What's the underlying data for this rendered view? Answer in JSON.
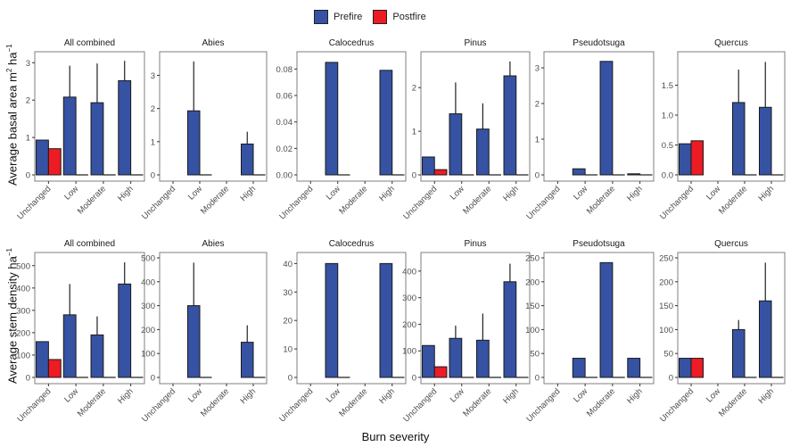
{
  "legend": {
    "items": [
      {
        "label": "Prefire",
        "color": "#3652A3"
      },
      {
        "label": "Postfire",
        "color": "#ED1C24"
      }
    ]
  },
  "axis": {
    "x_title": "Burn severity",
    "y_title_top": "Average basal area  m",
    "y_title_top_sup1": "2",
    "y_title_top_mid": " ha",
    "y_title_top_sup2": "−1",
    "y_title_bottom": "Average stem density ha",
    "y_title_bottom_sup": "−1"
  },
  "chart_data": [
    {
      "type": "bar",
      "row": "basal_area",
      "title": "All combined",
      "categories": [
        "Unchanged",
        "Low",
        "Moderate",
        "High"
      ],
      "ylim": [
        0,
        3.15
      ],
      "yticks": [
        0,
        1,
        2,
        3
      ],
      "ytick_labels": [
        "0",
        "1",
        "2",
        "3"
      ],
      "series": [
        {
          "name": "Prefire",
          "values": [
            0.93,
            2.08,
            1.93,
            2.52
          ],
          "err_upper": [
            null,
            2.92,
            2.98,
            3.05
          ]
        },
        {
          "name": "Postfire",
          "values": [
            0.7,
            0,
            0,
            0
          ],
          "err_upper": [
            null,
            null,
            null,
            null
          ]
        }
      ]
    },
    {
      "type": "bar",
      "row": "basal_area",
      "title": "Abies",
      "categories": [
        "Unchanged",
        "Low",
        "Moderate",
        "High"
      ],
      "ylim": [
        0,
        3.55
      ],
      "yticks": [
        0,
        1,
        2,
        3
      ],
      "ytick_labels": [
        "0",
        "1",
        "2",
        "3"
      ],
      "series": [
        {
          "name": "Prefire",
          "values": [
            null,
            1.93,
            null,
            0.93
          ],
          "err_upper": [
            null,
            3.42,
            null,
            1.3
          ]
        },
        {
          "name": "Postfire",
          "values": [
            null,
            0,
            null,
            0
          ],
          "err_upper": [
            null,
            null,
            null,
            null
          ]
        }
      ]
    },
    {
      "type": "bar",
      "row": "basal_area",
      "title": "Calocedrus",
      "categories": [
        "Unchanged",
        "Low",
        "Moderate",
        "High"
      ],
      "ylim": [
        0,
        0.089
      ],
      "yticks": [
        0,
        0.02,
        0.04,
        0.06,
        0.08
      ],
      "ytick_labels": [
        "0.00",
        "0.02",
        "0.04",
        "0.06",
        "0.08"
      ],
      "series": [
        {
          "name": "Prefire",
          "values": [
            null,
            0.085,
            null,
            0.079
          ],
          "err_upper": [
            null,
            null,
            null,
            null
          ]
        },
        {
          "name": "Postfire",
          "values": [
            null,
            0,
            null,
            0
          ],
          "err_upper": [
            null,
            null,
            null,
            null
          ]
        }
      ]
    },
    {
      "type": "bar",
      "row": "basal_area",
      "title": "Pinus",
      "categories": [
        "Unchanged",
        "Low",
        "Moderate",
        "High"
      ],
      "ylim": [
        0,
        2.7
      ],
      "yticks": [
        0,
        1,
        2
      ],
      "ytick_labels": [
        "0",
        "1",
        "2"
      ],
      "series": [
        {
          "name": "Prefire",
          "values": [
            0.41,
            1.4,
            1.05,
            2.27
          ],
          "err_upper": [
            null,
            2.12,
            1.64,
            2.6
          ]
        },
        {
          "name": "Postfire",
          "values": [
            0.12,
            0,
            0,
            0
          ],
          "err_upper": [
            null,
            null,
            null,
            null
          ]
        }
      ]
    },
    {
      "type": "bar",
      "row": "basal_area",
      "title": "Pseudotsuga",
      "categories": [
        "Unchanged",
        "Low",
        "Moderate",
        "High"
      ],
      "ylim": [
        0,
        3.3
      ],
      "yticks": [
        0,
        1,
        2,
        3
      ],
      "ytick_labels": [
        "0",
        "1",
        "2",
        "3"
      ],
      "series": [
        {
          "name": "Prefire",
          "values": [
            null,
            0.17,
            3.18,
            0.03
          ],
          "err_upper": [
            null,
            null,
            null,
            null
          ]
        },
        {
          "name": "Postfire",
          "values": [
            null,
            0,
            0,
            0
          ],
          "err_upper": [
            null,
            null,
            null,
            null
          ]
        }
      ]
    },
    {
      "type": "bar",
      "row": "basal_area",
      "title": "Quercus",
      "categories": [
        "Unchanged",
        "Low",
        "Moderate",
        "High"
      ],
      "ylim": [
        0,
        1.97
      ],
      "yticks": [
        0,
        0.5,
        1.0,
        1.5
      ],
      "ytick_labels": [
        "0.0",
        "0.5",
        "1.0",
        "1.5"
      ],
      "series": [
        {
          "name": "Prefire",
          "values": [
            0.52,
            null,
            1.21,
            1.13
          ],
          "err_upper": [
            null,
            null,
            1.76,
            1.89
          ]
        },
        {
          "name": "Postfire",
          "values": [
            0.57,
            null,
            0,
            0
          ],
          "err_upper": [
            null,
            null,
            null,
            null
          ]
        }
      ]
    },
    {
      "type": "bar",
      "row": "stem_density",
      "title": "All combined",
      "categories": [
        "Unchanged",
        "Low",
        "Moderate",
        "High"
      ],
      "ylim": [
        0,
        535
      ],
      "yticks": [
        0,
        100,
        200,
        300,
        400,
        500
      ],
      "ytick_labels": [
        "0",
        "100",
        "200",
        "300",
        "400",
        "500"
      ],
      "series": [
        {
          "name": "Prefire",
          "values": [
            160,
            280,
            190,
            418
          ],
          "err_upper": [
            null,
            418,
            273,
            515
          ]
        },
        {
          "name": "Postfire",
          "values": [
            80,
            0,
            0,
            0
          ],
          "err_upper": [
            null,
            null,
            null,
            null
          ]
        }
      ]
    },
    {
      "type": "bar",
      "row": "stem_density",
      "title": "Abies",
      "categories": [
        "Unchanged",
        "Low",
        "Moderate",
        "High"
      ],
      "ylim": [
        0,
        500
      ],
      "yticks": [
        0,
        100,
        200,
        300,
        400,
        500
      ],
      "ytick_labels": [
        "0",
        "100",
        "200",
        "300",
        "400",
        "500"
      ],
      "series": [
        {
          "name": "Prefire",
          "values": [
            null,
            300,
            null,
            147
          ],
          "err_upper": [
            null,
            480,
            null,
            218
          ]
        },
        {
          "name": "Postfire",
          "values": [
            null,
            0,
            null,
            0
          ],
          "err_upper": [
            null,
            null,
            null,
            null
          ]
        }
      ]
    },
    {
      "type": "bar",
      "row": "stem_density",
      "title": "Calocedrus",
      "categories": [
        "Unchanged",
        "Low",
        "Moderate",
        "High"
      ],
      "ylim": [
        0,
        42
      ],
      "yticks": [
        0,
        10,
        20,
        30,
        40
      ],
      "ytick_labels": [
        "0",
        "10",
        "20",
        "30",
        "40"
      ],
      "series": [
        {
          "name": "Prefire",
          "values": [
            null,
            40,
            null,
            40
          ],
          "err_upper": [
            null,
            null,
            null,
            null
          ]
        },
        {
          "name": "Postfire",
          "values": [
            null,
            0,
            null,
            0
          ],
          "err_upper": [
            null,
            null,
            null,
            null
          ]
        }
      ]
    },
    {
      "type": "bar",
      "row": "stem_density",
      "title": "Pinus",
      "categories": [
        "Unchanged",
        "Low",
        "Moderate",
        "High"
      ],
      "ylim": [
        0,
        450
      ],
      "yticks": [
        0,
        100,
        200,
        300,
        400
      ],
      "ytick_labels": [
        "0",
        "100",
        "200",
        "300",
        "400"
      ],
      "series": [
        {
          "name": "Prefire",
          "values": [
            120,
            147,
            140,
            360
          ],
          "err_upper": [
            null,
            195,
            240,
            428
          ]
        },
        {
          "name": "Postfire",
          "values": [
            40,
            0,
            0,
            0
          ],
          "err_upper": [
            null,
            null,
            null,
            null
          ]
        }
      ]
    },
    {
      "type": "bar",
      "row": "stem_density",
      "title": "Pseudotsuga",
      "categories": [
        "Unchanged",
        "Low",
        "Moderate",
        "High"
      ],
      "ylim": [
        0,
        250
      ],
      "yticks": [
        0,
        50,
        100,
        150,
        200,
        250
      ],
      "ytick_labels": [
        "0",
        "50",
        "100",
        "150",
        "200",
        "250"
      ],
      "series": [
        {
          "name": "Prefire",
          "values": [
            null,
            40,
            240,
            40
          ],
          "err_upper": [
            null,
            null,
            null,
            null
          ]
        },
        {
          "name": "Postfire",
          "values": [
            null,
            0,
            0,
            0
          ],
          "err_upper": [
            null,
            null,
            null,
            null
          ]
        }
      ]
    },
    {
      "type": "bar",
      "row": "stem_density",
      "title": "Quercus",
      "categories": [
        "Unchanged",
        "Low",
        "Moderate",
        "High"
      ],
      "ylim": [
        0,
        250
      ],
      "yticks": [
        0,
        50,
        100,
        150,
        200,
        250
      ],
      "ytick_labels": [
        "0",
        "50",
        "100",
        "150",
        "200",
        "250"
      ],
      "series": [
        {
          "name": "Prefire",
          "values": [
            40,
            null,
            100,
            160
          ],
          "err_upper": [
            null,
            null,
            120,
            240
          ]
        },
        {
          "name": "Postfire",
          "values": [
            40,
            null,
            0,
            0
          ],
          "err_upper": [
            null,
            null,
            null,
            null
          ]
        }
      ]
    }
  ]
}
